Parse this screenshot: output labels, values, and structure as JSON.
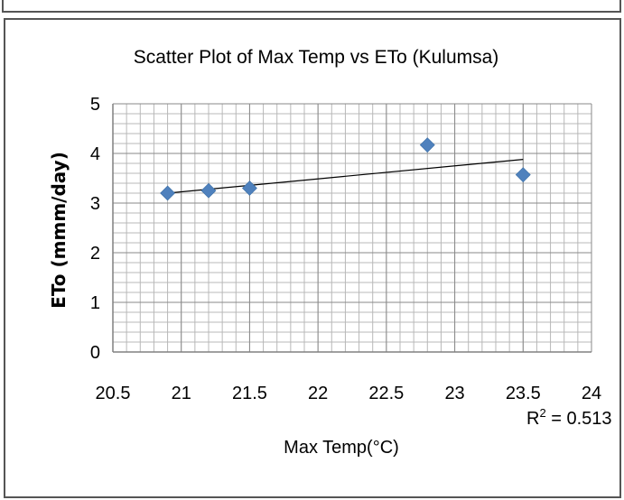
{
  "chart_data": {
    "type": "scatter",
    "title": "Scatter Plot of Max Temp vs ETo (Kulumsa)",
    "xlabel": "Max Temp(°C)",
    "ylabel": "ETo (mmm/day)",
    "xlim": [
      20.5,
      24
    ],
    "ylim": [
      0,
      5
    ],
    "xticks": [
      "20.5",
      "21",
      "21.5",
      "22",
      "22.5",
      "23",
      "23.5",
      "24"
    ],
    "yticks": [
      "0",
      "1",
      "2",
      "3",
      "4",
      "5"
    ],
    "grid": true,
    "series": [
      {
        "marker": "diamond",
        "color": "#4f81bd",
        "points": [
          {
            "x": 20.9,
            "y": 3.2
          },
          {
            "x": 21.2,
            "y": 3.25
          },
          {
            "x": 21.5,
            "y": 3.3
          },
          {
            "x": 22.8,
            "y": 4.17
          },
          {
            "x": 23.5,
            "y": 3.57
          }
        ]
      }
    ],
    "trendline": {
      "type": "linear",
      "x_range": [
        20.9,
        23.5
      ],
      "y_start": 3.2,
      "y_end": 3.88,
      "color": "#000000"
    },
    "annotation": {
      "r2_base": "R",
      "r2_sup": "2",
      "r2_value": " = 0.513"
    }
  }
}
